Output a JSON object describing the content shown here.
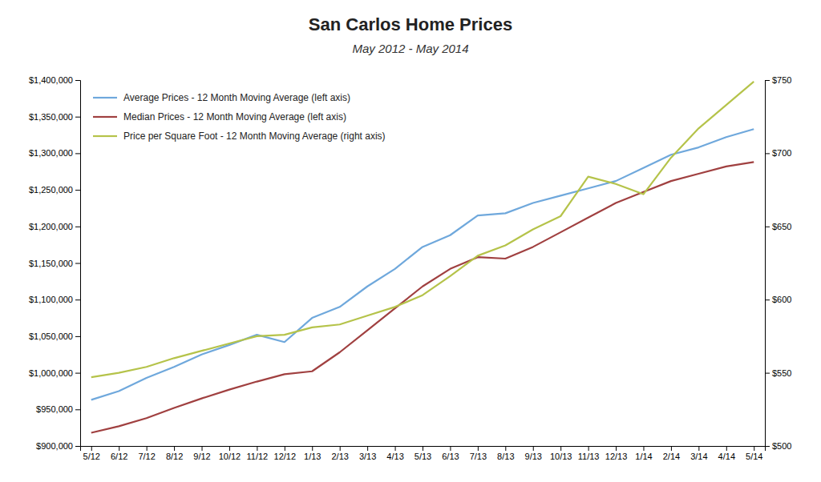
{
  "chart_data": {
    "type": "line",
    "title": "San Carlos Home Prices",
    "subtitle": "May 2012 - May 2014",
    "categories": [
      "5/12",
      "6/12",
      "7/12",
      "8/12",
      "9/12",
      "10/12",
      "11/12",
      "12/12",
      "1/13",
      "2/13",
      "3/13",
      "4/13",
      "5/13",
      "6/13",
      "7/13",
      "8/13",
      "9/13",
      "10/13",
      "11/13",
      "12/13",
      "1/14",
      "2/14",
      "3/14",
      "4/14",
      "5/14"
    ],
    "series": [
      {
        "name": "Average Prices - 12 Month Moving Average (left axis)",
        "color": "#6fa8dc",
        "values": [
          963000,
          975000,
          993000,
          1008000,
          1025000,
          1038000,
          1052000,
          1042000,
          1075000,
          1090000,
          1118000,
          1142000,
          1172000,
          1188000,
          1215000,
          1218000,
          1232000,
          1242000,
          1252000,
          1262000,
          1280000,
          1298000,
          1308000,
          1322000,
          1333000
        ]
      },
      {
        "name": "Median Prices - 12 Month Moving Average (left axis)",
        "color": "#a04040",
        "values": [
          918000,
          927000,
          938000,
          952000,
          965000,
          977000,
          988000,
          998000,
          1002000,
          1028000,
          1058000,
          1088000,
          1118000,
          1142000,
          1158000,
          1156000,
          1172000,
          1192000,
          1212000,
          1232000,
          1247000,
          1262000,
          1272000,
          1282000,
          1288000
        ]
      },
      {
        "name": "Price per Square Foot - 12 Month Moving Average (right axis)",
        "color": "#b5c34a",
        "axis": "y2",
        "values": [
          547,
          550,
          554,
          560,
          565,
          570,
          575,
          576,
          581,
          583,
          589,
          595,
          603,
          616,
          630,
          637,
          648,
          657,
          684,
          679,
          672,
          697,
          717,
          733,
          749
        ]
      }
    ],
    "ylim": [
      900000,
      1400000
    ],
    "yticks": [
      {
        "value": 900000,
        "label": "$900,000"
      },
      {
        "value": 950000,
        "label": "$950,000"
      },
      {
        "value": 1000000,
        "label": "$1,000,000"
      },
      {
        "value": 1050000,
        "label": "$1,050,000"
      },
      {
        "value": 1100000,
        "label": "$1,100,000"
      },
      {
        "value": 1150000,
        "label": "$1,150,000"
      },
      {
        "value": 1200000,
        "label": "$1,200,000"
      },
      {
        "value": 1250000,
        "label": "$1,250,000"
      },
      {
        "value": 1300000,
        "label": "$1,300,000"
      },
      {
        "value": 1350000,
        "label": "$1,350,000"
      },
      {
        "value": 1400000,
        "label": "$1,400,000"
      }
    ],
    "y2lim": [
      500,
      750
    ],
    "y2ticks": [
      {
        "value": 500,
        "label": "$500"
      },
      {
        "value": 550,
        "label": "$550"
      },
      {
        "value": 600,
        "label": "$600"
      },
      {
        "value": 650,
        "label": "$650"
      },
      {
        "value": 700,
        "label": "$700"
      },
      {
        "value": 750,
        "label": "$750"
      }
    ],
    "grid": false,
    "legend": "upper-left"
  }
}
